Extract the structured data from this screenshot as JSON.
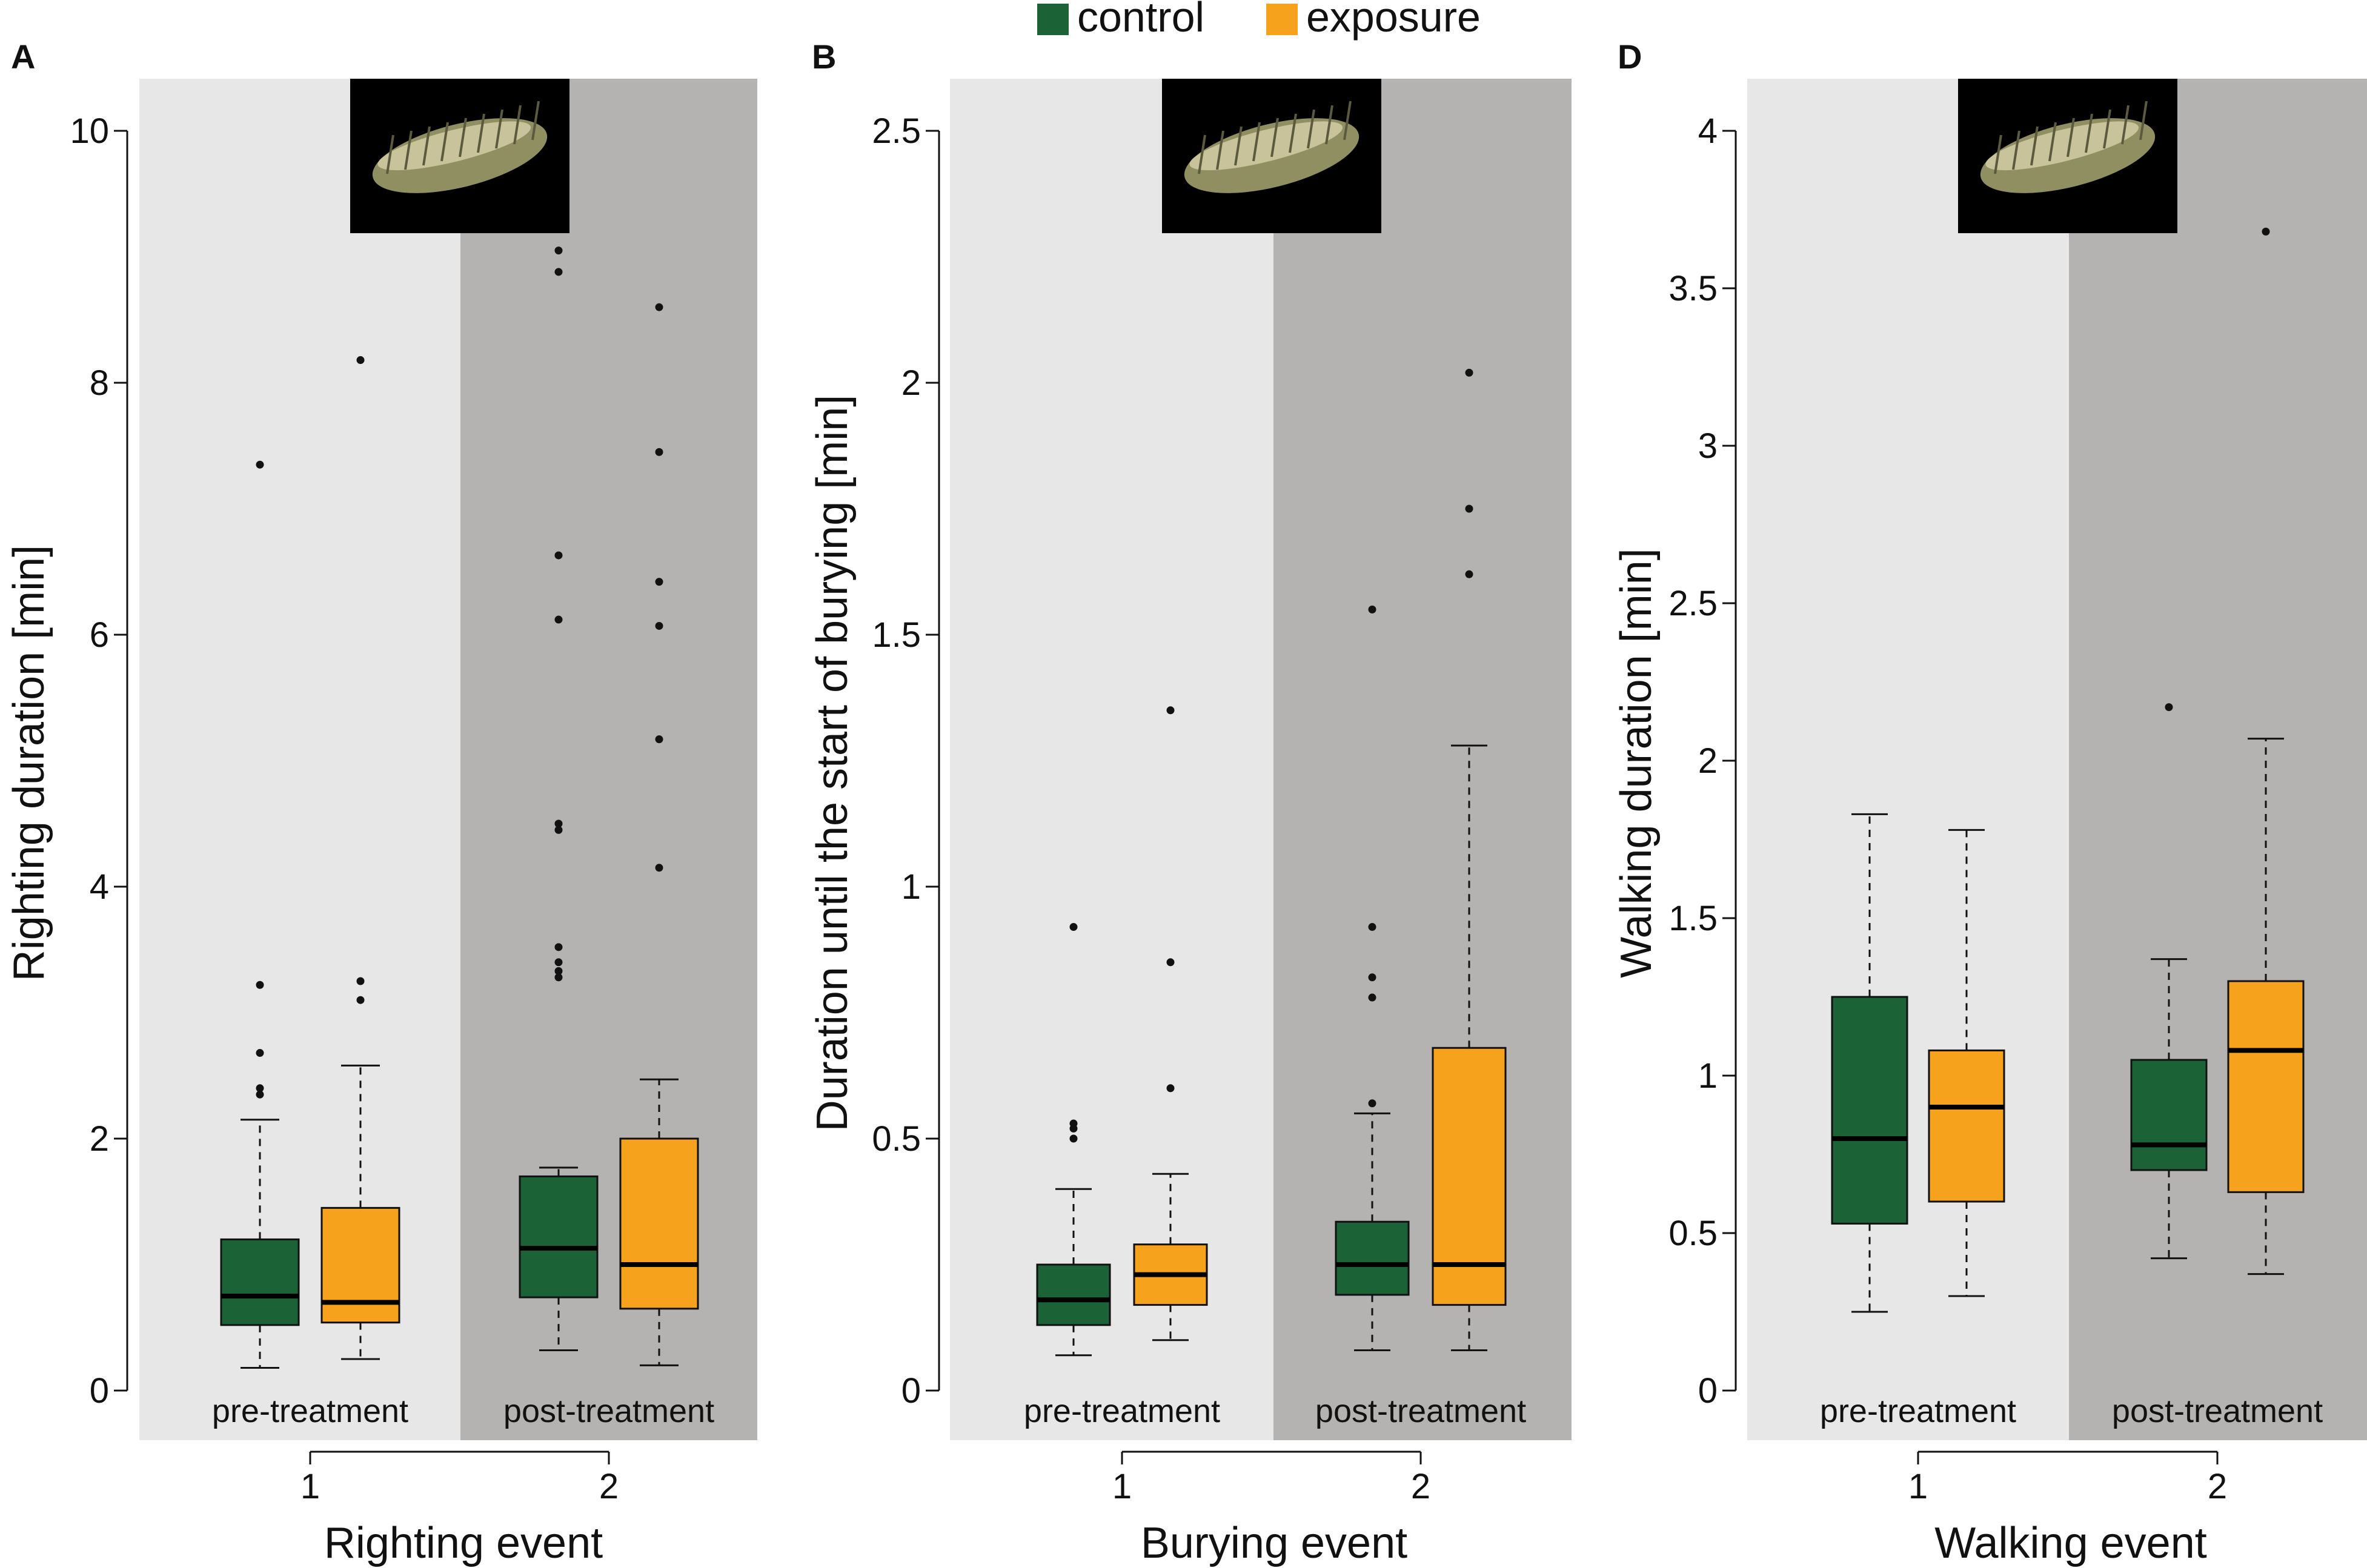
{
  "legend": {
    "entries": [
      {
        "label": "control",
        "color": "#1b6337"
      },
      {
        "label": "exposure",
        "color": "#f7a21d"
      }
    ]
  },
  "colors": {
    "control": "#1b6337",
    "exposure": "#f7a21d",
    "pre_bg": "#e7e7e7",
    "post_bg": "#b4b3b1"
  },
  "chart_data": [
    {
      "type": "box",
      "panel": "A",
      "xlabel": "Righting event",
      "ylabel": "Righting duration [min]",
      "ylim": [
        0,
        10
      ],
      "y_ticks": [
        "0",
        "2",
        "4",
        "6",
        "8",
        "10"
      ],
      "y_tick_values": [
        0,
        2,
        4,
        6,
        8,
        10
      ],
      "periods": [
        "pre-treatment",
        "post-treatment"
      ],
      "x_ticks": [
        "1",
        "2"
      ],
      "series": [
        {
          "name": "control",
          "boxes": [
            {
              "whisker_low": 0.18,
              "q1": 0.52,
              "median": 0.75,
              "q3": 1.2,
              "whisker_high": 2.15,
              "outliers": [
                2.35,
                2.4,
                2.68,
                3.22,
                7.35
              ]
            },
            {
              "whisker_low": 0.32,
              "q1": 0.74,
              "median": 1.13,
              "q3": 1.7,
              "whisker_high": 1.77,
              "outliers": [
                3.28,
                3.33,
                3.4,
                3.52,
                4.45,
                4.5,
                6.12,
                6.63,
                8.88,
                9.05
              ]
            }
          ]
        },
        {
          "name": "exposure",
          "boxes": [
            {
              "whisker_low": 0.25,
              "q1": 0.54,
              "median": 0.7,
              "q3": 1.45,
              "whisker_high": 2.58,
              "outliers": [
                3.1,
                3.25,
                8.18
              ]
            },
            {
              "whisker_low": 0.2,
              "q1": 0.65,
              "median": 1.0,
              "q3": 2.0,
              "whisker_high": 2.47,
              "outliers": [
                4.15,
                5.17,
                6.07,
                6.42,
                7.45,
                8.6
              ]
            }
          ]
        }
      ]
    },
    {
      "type": "box",
      "panel": "B",
      "xlabel": "Burying event",
      "ylabel": "Duration until the start of burying [min]",
      "ylim": [
        0,
        2.5
      ],
      "y_ticks": [
        "0",
        "0.5",
        "1",
        "1.5",
        "2",
        "2.5"
      ],
      "y_tick_values": [
        0,
        0.5,
        1,
        1.5,
        2,
        2.5
      ],
      "periods": [
        "pre-treatment",
        "post-treatment"
      ],
      "x_ticks": [
        "1",
        "2"
      ],
      "series": [
        {
          "name": "control",
          "boxes": [
            {
              "whisker_low": 0.07,
              "q1": 0.13,
              "median": 0.18,
              "q3": 0.25,
              "whisker_high": 0.4,
              "outliers": [
                0.5,
                0.52,
                0.53,
                0.92
              ]
            },
            {
              "whisker_low": 0.08,
              "q1": 0.19,
              "median": 0.25,
              "q3": 0.335,
              "whisker_high": 0.55,
              "outliers": [
                0.57,
                0.78,
                0.82,
                0.92,
                1.55
              ]
            }
          ]
        },
        {
          "name": "exposure",
          "boxes": [
            {
              "whisker_low": 0.1,
              "q1": 0.17,
              "median": 0.23,
              "q3": 0.29,
              "whisker_high": 0.43,
              "outliers": [
                0.6,
                0.85,
                1.35
              ]
            },
            {
              "whisker_low": 0.08,
              "q1": 0.17,
              "median": 0.25,
              "q3": 0.68,
              "whisker_high": 1.28,
              "outliers": [
                1.62,
                1.75,
                2.02
              ]
            }
          ]
        }
      ]
    },
    {
      "type": "box",
      "panel": "D",
      "xlabel": "Walking event",
      "ylabel": "Walking duration [min]",
      "ylim": [
        0,
        4
      ],
      "y_ticks": [
        "0",
        "0.5",
        "1",
        "1.5",
        "2",
        "2.5",
        "3",
        "3.5",
        "4"
      ],
      "y_tick_values": [
        0,
        0.5,
        1,
        1.5,
        2,
        2.5,
        3,
        3.5,
        4
      ],
      "periods": [
        "pre-treatment",
        "post-treatment"
      ],
      "x_ticks": [
        "1",
        "2"
      ],
      "series": [
        {
          "name": "control",
          "boxes": [
            {
              "whisker_low": 0.25,
              "q1": 0.53,
              "median": 0.8,
              "q3": 1.25,
              "whisker_high": 1.83,
              "outliers": []
            },
            {
              "whisker_low": 0.42,
              "q1": 0.7,
              "median": 0.78,
              "q3": 1.05,
              "whisker_high": 1.37,
              "outliers": [
                2.17
              ]
            }
          ]
        },
        {
          "name": "exposure",
          "boxes": [
            {
              "whisker_low": 0.3,
              "q1": 0.6,
              "median": 0.9,
              "q3": 1.08,
              "whisker_high": 1.78,
              "outliers": []
            },
            {
              "whisker_low": 0.37,
              "q1": 0.63,
              "median": 1.08,
              "q3": 1.3,
              "whisker_high": 2.07,
              "outliers": [
                3.68
              ]
            }
          ]
        }
      ]
    }
  ]
}
